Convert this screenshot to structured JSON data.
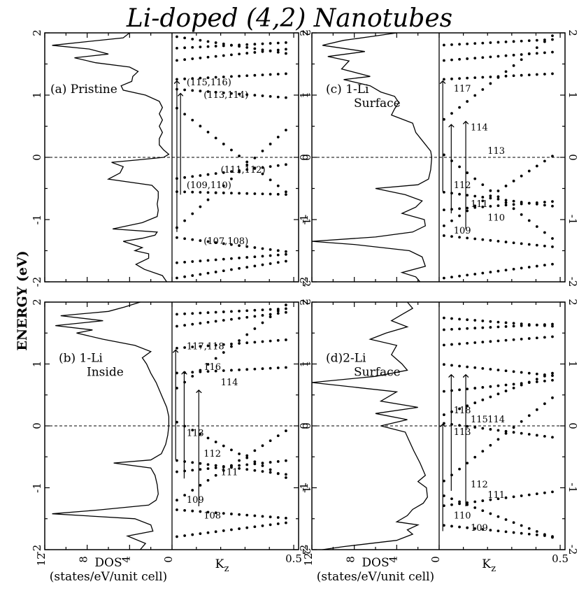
{
  "title": "Li-doped (4,2) Nanotubes",
  "ylabel": "ENERGY (eV)",
  "xlabel_dos": "DOS",
  "xlabel_dos_units": "(states/eV/unit cell)",
  "xlabel_k": "K",
  "xlabel_k_sub": "z",
  "dos_ticks": [
    "12",
    "8",
    "4",
    "0"
  ],
  "k_ticks": [
    "0.5"
  ],
  "energy_ticks": [
    "2",
    "1",
    "0",
    "-1",
    "-2"
  ],
  "chart_data": [
    {
      "type": "scatter",
      "panel": "a",
      "label_line1": "(a) Pristine",
      "label_line2": "",
      "ylim": [
        -2,
        2
      ],
      "dos_xlim": [
        12,
        0
      ],
      "k_xlim": [
        0,
        0.5
      ],
      "dos": [
        [
          -2.0,
          0.5
        ],
        [
          -1.9,
          0.9
        ],
        [
          -1.8,
          2.6
        ],
        [
          -1.72,
          3.4
        ],
        [
          -1.62,
          2.2
        ],
        [
          -1.55,
          2.2
        ],
        [
          -1.5,
          3.5
        ],
        [
          -1.45,
          2.8
        ],
        [
          -1.35,
          4.6
        ],
        [
          -1.3,
          2.8
        ],
        [
          -1.25,
          1.6
        ],
        [
          -1.2,
          1.4
        ],
        [
          -1.15,
          5.6
        ],
        [
          -1.05,
          2.8
        ],
        [
          -0.95,
          1.4
        ],
        [
          -0.85,
          1.3
        ],
        [
          -0.75,
          1.4
        ],
        [
          -0.65,
          1.3
        ],
        [
          -0.55,
          1.3
        ],
        [
          -0.45,
          1.9
        ],
        [
          -0.35,
          6.0
        ],
        [
          -0.25,
          4.9
        ],
        [
          -0.15,
          4.6
        ],
        [
          -0.08,
          5.7
        ],
        [
          -0.04,
          3.2
        ],
        [
          0.0,
          0.8
        ],
        [
          0.05,
          0.3
        ],
        [
          0.12,
          0.8
        ],
        [
          0.2,
          1.2
        ],
        [
          0.3,
          1.2
        ],
        [
          0.4,
          0.9
        ],
        [
          0.5,
          1.2
        ],
        [
          0.6,
          0.9
        ],
        [
          0.7,
          1.2
        ],
        [
          0.8,
          0.9
        ],
        [
          0.9,
          1.2
        ],
        [
          1.0,
          2.5
        ],
        [
          1.08,
          4.6
        ],
        [
          1.15,
          4.8
        ],
        [
          1.22,
          3.8
        ],
        [
          1.3,
          3.7
        ],
        [
          1.38,
          3.2
        ],
        [
          1.45,
          4.0
        ],
        [
          1.52,
          7.2
        ],
        [
          1.6,
          9.2
        ],
        [
          1.66,
          6.0
        ],
        [
          1.74,
          7.8
        ],
        [
          1.8,
          11.3
        ],
        [
          1.86,
          8.0
        ],
        [
          1.92,
          4.6
        ],
        [
          2.0,
          4.0
        ]
      ],
      "bands": [
        {
          "e0": 1.25,
          "slope": 0.2
        },
        {
          "e0": 1.1,
          "slope": -0.3
        },
        {
          "e0": 0.85,
          "slope": -3.0
        },
        {
          "e0": -0.35,
          "slope": 0.5
        },
        {
          "e0": -0.55,
          "slope": -0.1
        },
        {
          "e0": -1.2,
          "slope": 3.5
        },
        {
          "e0": -1.28,
          "slope": -0.5
        },
        {
          "e0": -1.7,
          "slope": 0.3
        },
        {
          "e0": 1.55,
          "slope": 0.4
        },
        {
          "e0": 1.75,
          "slope": 0.2
        },
        {
          "e0": 1.95,
          "slope": -0.6
        },
        {
          "e0": -1.95,
          "slope": 0.6
        }
      ],
      "band_labels": [
        "(115,116)",
        "(113,114)",
        "(111,112)",
        "(109,110)",
        "(107,108)"
      ],
      "band_label_energies": [
        1.2,
        1.0,
        -0.2,
        -0.45,
        -1.35
      ],
      "transitions": [
        [
          0.02,
          -1.2,
          1.25
        ],
        [
          0.035,
          -0.6,
          1.05
        ]
      ]
    },
    {
      "type": "scatter",
      "panel": "b",
      "label_line1": "(b)  1-Li",
      "label_line2": "Inside",
      "ylim": [
        -2,
        2
      ],
      "dos_xlim": [
        12,
        0
      ],
      "k_xlim": [
        0,
        0.5
      ],
      "dos": [
        [
          -2.0,
          3.0
        ],
        [
          -1.9,
          2.5
        ],
        [
          -1.78,
          4.2
        ],
        [
          -1.7,
          1.8
        ],
        [
          -1.6,
          2.0
        ],
        [
          -1.5,
          3.5
        ],
        [
          -1.42,
          11.3
        ],
        [
          -1.36,
          7.0
        ],
        [
          -1.28,
          2.2
        ],
        [
          -1.2,
          1.5
        ],
        [
          -1.1,
          1.3
        ],
        [
          -0.95,
          1.4
        ],
        [
          -0.8,
          1.6
        ],
        [
          -0.68,
          2.0
        ],
        [
          -0.6,
          5.5
        ],
        [
          -0.55,
          2.0
        ],
        [
          -0.45,
          1.0
        ],
        [
          -0.3,
          0.6
        ],
        [
          -0.15,
          0.4
        ],
        [
          0.0,
          0.3
        ],
        [
          0.15,
          0.3
        ],
        [
          0.3,
          0.5
        ],
        [
          0.5,
          1.0
        ],
        [
          0.7,
          1.5
        ],
        [
          0.85,
          2.0
        ],
        [
          1.0,
          2.4
        ],
        [
          1.1,
          2.8
        ],
        [
          1.2,
          2.0
        ],
        [
          1.3,
          3.5
        ],
        [
          1.4,
          6.5
        ],
        [
          1.5,
          9.0
        ],
        [
          1.55,
          7.5
        ],
        [
          1.62,
          11.0
        ],
        [
          1.7,
          6.5
        ],
        [
          1.78,
          10.5
        ],
        [
          1.85,
          6.0
        ],
        [
          1.92,
          4.5
        ],
        [
          2.0,
          3.0
        ]
      ],
      "bands": [
        {
          "e0": 1.25,
          "slope": 0.3
        },
        {
          "e0": 0.85,
          "slope": 0.2
        },
        {
          "e0": 0.55,
          "slope": 3.0
        },
        {
          "e0": 0.1,
          "slope": -2.0
        },
        {
          "e0": -0.55,
          "slope": -0.5
        },
        {
          "e0": -0.75,
          "slope": 0.4
        },
        {
          "e0": -1.25,
          "slope": 2.5
        },
        {
          "e0": -1.35,
          "slope": -0.3
        },
        {
          "e0": 1.6,
          "slope": 0.5
        },
        {
          "e0": 1.8,
          "slope": 0.2
        },
        {
          "e0": -1.8,
          "slope": 0.5
        }
      ],
      "band_labels": [
        "117,118",
        "116",
        "114",
        "113",
        "112",
        "111",
        "109",
        "108"
      ],
      "band_label_energies": [
        1.28,
        0.95,
        0.7,
        -0.12,
        -0.45,
        -0.75,
        -1.2,
        -1.45
      ],
      "transitions": [
        [
          0.015,
          -0.55,
          1.25
        ],
        [
          0.05,
          -0.85,
          0.9
        ],
        [
          0.11,
          -1.3,
          0.6
        ]
      ]
    },
    {
      "type": "scatter",
      "panel": "c",
      "label_line1": "(c)  1-Li",
      "label_line2": "Surface",
      "ylim": [
        -2,
        2
      ],
      "dos_xlim": [
        12,
        0
      ],
      "k_xlim": [
        0,
        0.5
      ],
      "dos": [
        [
          -2.0,
          1.8
        ],
        [
          -1.92,
          2.2
        ],
        [
          -1.85,
          3.5
        ],
        [
          -1.75,
          1.3
        ],
        [
          -1.6,
          1.6
        ],
        [
          -1.5,
          2.8
        ],
        [
          -1.4,
          8.0
        ],
        [
          -1.35,
          12.0
        ],
        [
          -1.28,
          6.0
        ],
        [
          -1.2,
          2.5
        ],
        [
          -1.1,
          1.3
        ],
        [
          -1.0,
          1.4
        ],
        [
          -0.9,
          3.5
        ],
        [
          -0.8,
          2.2
        ],
        [
          -0.7,
          1.6
        ],
        [
          -0.6,
          3.2
        ],
        [
          -0.5,
          6.0
        ],
        [
          -0.44,
          2.0
        ],
        [
          -0.35,
          1.0
        ],
        [
          -0.2,
          0.8
        ],
        [
          0.0,
          0.7
        ],
        [
          0.1,
          0.8
        ],
        [
          0.25,
          1.5
        ],
        [
          0.4,
          2.2
        ],
        [
          0.55,
          2.5
        ],
        [
          0.68,
          4.5
        ],
        [
          0.78,
          4.2
        ],
        [
          0.88,
          3.8
        ],
        [
          0.98,
          4.2
        ],
        [
          1.05,
          5.5
        ],
        [
          1.15,
          6.5
        ],
        [
          1.25,
          9.0
        ],
        [
          1.3,
          6.5
        ],
        [
          1.42,
          9.2
        ],
        [
          1.55,
          8.5
        ],
        [
          1.62,
          10.5
        ],
        [
          1.7,
          7.0
        ],
        [
          1.8,
          11.0
        ],
        [
          1.88,
          9.0
        ],
        [
          1.95,
          6.0
        ],
        [
          2.0,
          4.0
        ]
      ],
      "bands": [
        {
          "e0": 1.25,
          "slope": 0.2
        },
        {
          "e0": 0.55,
          "slope": 3.0
        },
        {
          "e0": 0.1,
          "slope": -3.0
        },
        {
          "e0": -0.55,
          "slope": -0.5
        },
        {
          "e0": -0.85,
          "slope": 0.3
        },
        {
          "e0": -1.15,
          "slope": 2.5
        },
        {
          "e0": -1.25,
          "slope": -0.4
        },
        {
          "e0": 1.55,
          "slope": 0.3
        },
        {
          "e0": 1.8,
          "slope": 0.2
        },
        {
          "e0": -1.95,
          "slope": 0.5
        }
      ],
      "band_labels": [
        "117",
        "114",
        "113",
        "112",
        "111",
        "110",
        "109"
      ],
      "band_label_energies": [
        1.1,
        0.48,
        0.1,
        -0.45,
        -0.75,
        -0.97,
        -1.18
      ],
      "transitions": [
        [
          0.015,
          -0.55,
          1.25
        ],
        [
          0.05,
          -0.9,
          0.55
        ],
        [
          0.11,
          -1.15,
          0.6
        ]
      ]
    },
    {
      "type": "scatter",
      "panel": "d",
      "label_line1": "(d)2-Li",
      "label_line2": "Surface",
      "ylim": [
        -2,
        2
      ],
      "dos_xlim": [
        12,
        0
      ],
      "k_xlim": [
        0,
        0.5
      ],
      "dos": [
        [
          -2.0,
          11.0
        ],
        [
          -1.95,
          9.0
        ],
        [
          -1.85,
          4.0
        ],
        [
          -1.75,
          2.5
        ],
        [
          -1.68,
          3.0
        ],
        [
          -1.6,
          2.0
        ],
        [
          -1.55,
          4.0
        ],
        [
          -1.45,
          3.0
        ],
        [
          -1.35,
          2.5
        ],
        [
          -1.25,
          1.5
        ],
        [
          -1.15,
          1.1
        ],
        [
          -1.0,
          1.2
        ],
        [
          -0.9,
          2.0
        ],
        [
          -0.8,
          1.3
        ],
        [
          -0.6,
          1.8
        ],
        [
          -0.4,
          2.4
        ],
        [
          -0.25,
          2.8
        ],
        [
          -0.1,
          3.2
        ],
        [
          0.0,
          5.5
        ],
        [
          0.1,
          3.0
        ],
        [
          0.2,
          6.0
        ],
        [
          0.3,
          2.0
        ],
        [
          0.4,
          5.5
        ],
        [
          0.55,
          4.0
        ],
        [
          0.7,
          12.0
        ],
        [
          0.8,
          6.0
        ],
        [
          0.9,
          3.0
        ],
        [
          1.0,
          3.5
        ],
        [
          1.15,
          4.5
        ],
        [
          1.3,
          4.0
        ],
        [
          1.4,
          6.5
        ],
        [
          1.5,
          5.0
        ],
        [
          1.6,
          3.0
        ],
        [
          1.7,
          4.5
        ],
        [
          1.8,
          3.5
        ],
        [
          1.9,
          2.5
        ],
        [
          2.0,
          3.0
        ]
      ],
      "bands": [
        {
          "e0": 0.55,
          "slope": 0.4
        },
        {
          "e0": 0.15,
          "slope": 1.5
        },
        {
          "e0": 0.05,
          "slope": -0.5
        },
        {
          "e0": -0.95,
          "slope": 3.0
        },
        {
          "e0": -1.1,
          "slope": -1.5
        },
        {
          "e0": -1.3,
          "slope": 0.5
        },
        {
          "e0": -1.6,
          "slope": -0.4
        },
        {
          "e0": 1.3,
          "slope": 0.3
        },
        {
          "e0": 1.55,
          "slope": 0.2
        },
        {
          "e0": 1.75,
          "slope": -0.3
        },
        {
          "e0": 1.0,
          "slope": -0.4
        }
      ],
      "band_labels": [
        "118",
        "115",
        "114",
        "113",
        "112",
        "111",
        "110",
        "109"
      ],
      "band_label_energies": [
        0.25,
        0.1,
        0.1,
        -0.1,
        -0.95,
        -1.12,
        -1.45,
        -1.65
      ],
      "transitions": [
        [
          0.015,
          -1.7,
          0.05
        ],
        [
          0.05,
          -1.05,
          0.85
        ],
        [
          0.11,
          -1.3,
          0.85
        ]
      ]
    }
  ]
}
